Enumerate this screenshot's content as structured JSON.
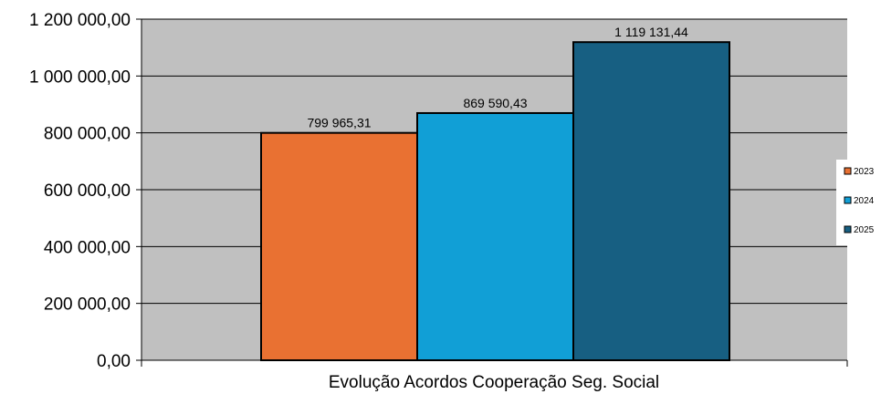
{
  "chart_data": {
    "type": "bar",
    "categories": [
      "Evolução Acordos Cooperação Seg. Social"
    ],
    "series": [
      {
        "name": "2023",
        "values": [
          799965.31
        ],
        "color": "#E97132",
        "label": "799 965,31"
      },
      {
        "name": "2024",
        "values": [
          869590.43
        ],
        "color": "#119FD6",
        "label": "869 590,43"
      },
      {
        "name": "2025",
        "values": [
          1119131.44
        ],
        "color": "#175F82",
        "label": "1 119 131,44"
      }
    ],
    "title": "",
    "xlabel": "Evolução Acordos Cooperação Seg. Social",
    "ylabel": "",
    "ylim": [
      0,
      1200000
    ],
    "y_ticks": [
      {
        "value": 0,
        "label": "0,00"
      },
      {
        "value": 200000,
        "label": "200 000,00"
      },
      {
        "value": 400000,
        "label": "400 000,00"
      },
      {
        "value": 600000,
        "label": "600 000,00"
      },
      {
        "value": 800000,
        "label": "800 000,00"
      },
      {
        "value": 1000000,
        "label": "1 000 000,00"
      },
      {
        "value": 1200000,
        "label": "1 200 000,00"
      }
    ],
    "grid": true,
    "legend": "right",
    "plot_background": "#C0C0C0"
  }
}
